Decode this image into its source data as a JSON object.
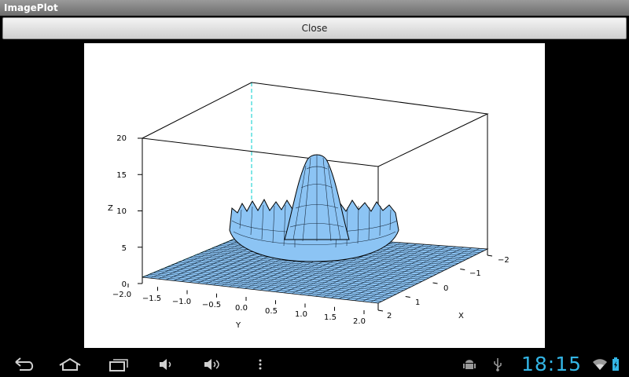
{
  "window": {
    "title": "ImagePlot"
  },
  "toolbar": {
    "close_label": "Close"
  },
  "plot": {
    "z_axis": {
      "label": "Z",
      "ticks": [
        "0",
        "5",
        "10",
        "15",
        "20"
      ]
    },
    "y_axis": {
      "label": "Y",
      "ticks": [
        "−2.0",
        "−1.5",
        "−1.0",
        "−0.5",
        "0.0",
        "0.5",
        "1.0",
        "1.5",
        "2.0"
      ]
    },
    "x_axis": {
      "label": "X",
      "ticks": [
        "−2",
        "−1",
        "0",
        "1",
        "2"
      ]
    },
    "surface_color": "#8cc4f4",
    "mesh_color": "#000000",
    "box_color": "#000000",
    "hidden_edge_color": "#00cccc"
  },
  "navbar": {
    "icons": [
      "back-icon",
      "home-icon",
      "recent-apps-icon",
      "volume-down-icon",
      "volume-up-icon",
      "menu-icon"
    ]
  },
  "status": {
    "time": "18:15",
    "icons": [
      "android-debug-icon",
      "usb-icon",
      "wifi-icon",
      "battery-icon"
    ],
    "accent_color": "#33b5e5"
  }
}
